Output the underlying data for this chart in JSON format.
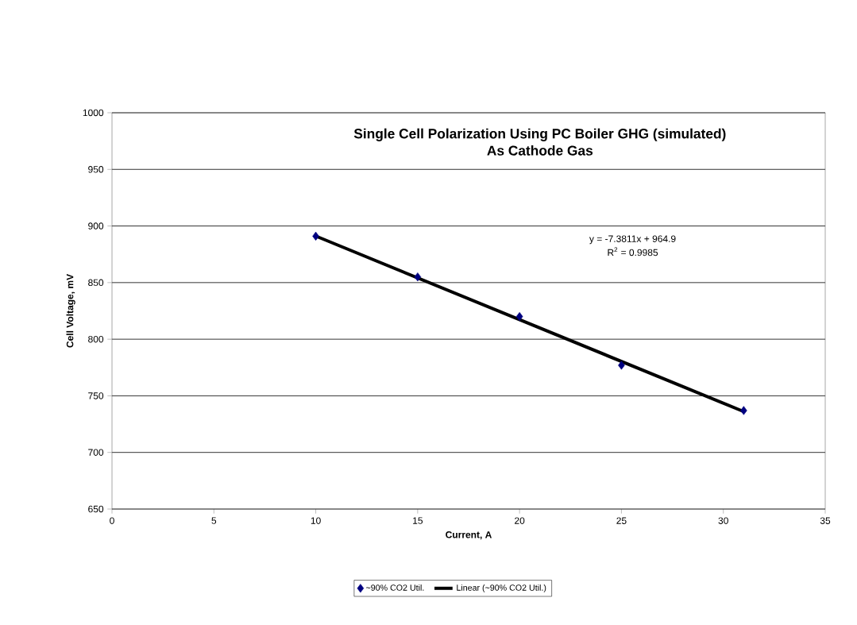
{
  "chart_data": {
    "type": "scatter",
    "title": "Single Cell Polarization Using PC Boiler GHG (simulated)",
    "subtitle": "As Cathode Gas",
    "xlabel": "Current, A",
    "ylabel": "Cell Voltage, mV",
    "x": [
      10,
      15,
      20,
      25,
      31
    ],
    "series": [
      {
        "name": "~90% CO2 Util.",
        "marker": "diamond",
        "color": "#000080",
        "values": [
          891,
          855,
          820,
          777,
          737
        ]
      },
      {
        "name": "Linear (~90% CO2 Util.)",
        "type": "line",
        "marker": "none",
        "line_style": "solid",
        "color": "#000000",
        "x": [
          10,
          31
        ],
        "values": [
          891.1,
          736.1
        ]
      }
    ],
    "annotations": [
      "y = -7.3811x + 964.9",
      "R$^{2}$ = 0.9985"
    ],
    "xlim": [
      0,
      35
    ],
    "xticks": [
      0,
      5,
      10,
      15,
      20,
      25,
      30,
      35
    ],
    "ylim": [
      650,
      1000
    ],
    "yticks": [
      650,
      700,
      750,
      800,
      850,
      900,
      950,
      1000
    ],
    "grid": "y",
    "legend": "bottom"
  }
}
